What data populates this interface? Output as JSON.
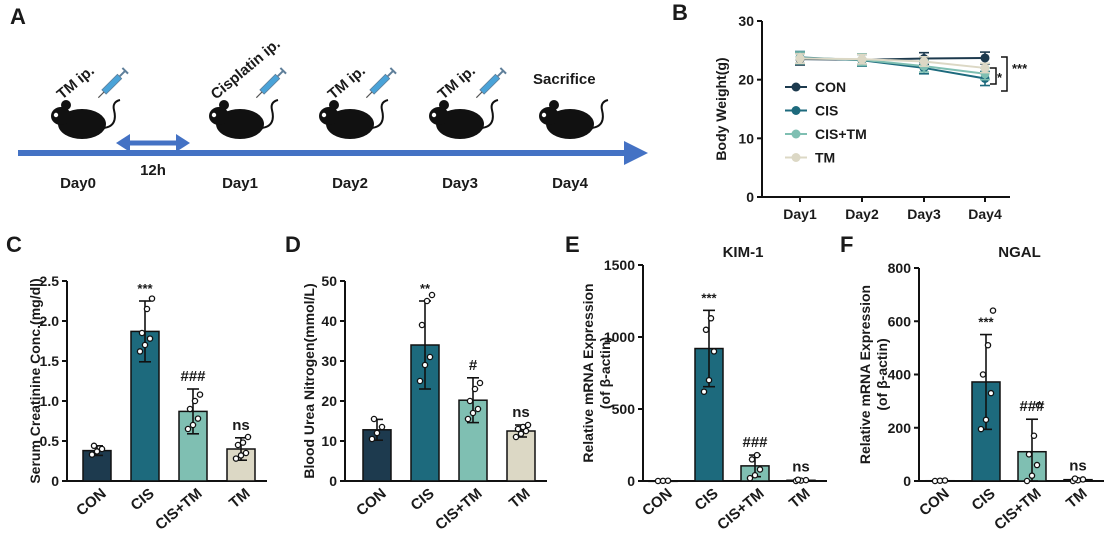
{
  "panel_labels": [
    "A",
    "B",
    "C",
    "D",
    "E",
    "F"
  ],
  "colors": {
    "CON": "#1d3a4e",
    "CIS": "#1d6a7d",
    "CIS+TM": "#7fbfb2",
    "TM": "#dcd8c5",
    "timeline": "#4472c4",
    "syringe": "#4aa3d8"
  },
  "timeline": {
    "steps": [
      "TM ip.",
      "Cisplatin ip.",
      "TM ip.",
      "TM ip.",
      "Sacrifice"
    ],
    "days": [
      "Day0",
      "Day1",
      "Day2",
      "Day3",
      "Day4"
    ],
    "interval": "12h"
  },
  "chart_data": [
    {
      "panel": "B",
      "type": "line",
      "title": "",
      "xlabel": "",
      "ylabel": "Body Weight(g)",
      "x": [
        "Day1",
        "Day2",
        "Day3",
        "Day4"
      ],
      "ylim": [
        0,
        30
      ],
      "yticks": [
        0,
        10,
        20,
        30
      ],
      "series": [
        {
          "name": "CON",
          "values": [
            23.5,
            23.4,
            23.6,
            23.7
          ],
          "err": [
            1.0,
            1.0,
            1.0,
            1.0
          ]
        },
        {
          "name": "CIS",
          "values": [
            23.8,
            23.3,
            22.0,
            20.2
          ],
          "err": [
            1.0,
            1.0,
            1.0,
            1.2
          ]
        },
        {
          "name": "CIS+TM",
          "values": [
            23.7,
            23.4,
            22.3,
            21.0
          ],
          "err": [
            1.0,
            1.0,
            1.0,
            1.0
          ]
        },
        {
          "name": "TM",
          "values": [
            23.6,
            23.5,
            23.1,
            22.0
          ],
          "err": [
            0.8,
            0.8,
            0.8,
            0.8
          ]
        }
      ],
      "annotations": [
        "***",
        "*"
      ]
    },
    {
      "panel": "C",
      "type": "bar",
      "title": "",
      "ylabel": "Serum Creatinine Conc.(mg/dl)",
      "categories": [
        "CON",
        "CIS",
        "CIS+TM",
        "TM"
      ],
      "values": [
        0.38,
        1.87,
        0.87,
        0.4
      ],
      "err": [
        0.06,
        0.38,
        0.28,
        0.14
      ],
      "points": [
        [
          0.33,
          0.37,
          0.4,
          0.44
        ],
        [
          1.62,
          1.7,
          1.78,
          1.85,
          2.15,
          2.28
        ],
        [
          0.65,
          0.7,
          0.78,
          0.9,
          1.0,
          1.08
        ],
        [
          0.28,
          0.32,
          0.35,
          0.45,
          0.48,
          0.55
        ]
      ],
      "sig": [
        "",
        "***",
        "###",
        "ns"
      ],
      "ylim": [
        0,
        2.5
      ],
      "yticks": [
        0,
        0.5,
        1.0,
        1.5,
        2.0,
        2.5
      ],
      "ytick_labels": [
        "0",
        "0.5",
        "1.0",
        "1.5",
        "2.0",
        "2.5"
      ]
    },
    {
      "panel": "D",
      "type": "bar",
      "title": "",
      "ylabel": "Blood Urea Nitrogen(mmol/L)",
      "categories": [
        "CON",
        "CIS",
        "CIS+TM",
        "TM"
      ],
      "values": [
        12.8,
        34.0,
        20.2,
        12.5
      ],
      "err": [
        2.6,
        11.0,
        5.6,
        1.5
      ],
      "points": [
        [
          10.5,
          12.0,
          13.5,
          15.5
        ],
        [
          25.0,
          29.0,
          31.0,
          39.0,
          45.0,
          46.5
        ],
        [
          15.5,
          17.0,
          18.0,
          20.0,
          23.0,
          24.5
        ],
        [
          11.0,
          11.8,
          12.5,
          13.0,
          13.5,
          14.0
        ]
      ],
      "sig": [
        "",
        "**",
        "#",
        "ns"
      ],
      "ylim": [
        0,
        50
      ],
      "yticks": [
        0,
        10,
        20,
        30,
        40,
        50
      ],
      "ytick_labels": [
        "0",
        "10",
        "20",
        "30",
        "40",
        "50"
      ]
    },
    {
      "panel": "E",
      "type": "bar",
      "title": "KIM-1",
      "ylabel": "Relative mRNA Expression (of β-actin)",
      "categories": [
        "CON",
        "CIS",
        "CIS+TM",
        "TM"
      ],
      "values": [
        1,
        920,
        105,
        5
      ],
      "err": [
        1,
        265,
        75,
        5
      ],
      "points": [
        [
          0,
          1,
          2
        ],
        [
          620,
          700,
          900,
          1050,
          1130
        ],
        [
          20,
          40,
          80,
          150,
          180
        ],
        [
          0,
          3,
          6,
          9
        ]
      ],
      "sig": [
        "",
        "***",
        "###",
        "ns"
      ],
      "ylim": [
        0,
        1500
      ],
      "yticks": [
        0,
        500,
        1000,
        1500
      ],
      "ytick_labels": [
        "0",
        "500",
        "1000",
        "1500"
      ]
    },
    {
      "panel": "F",
      "type": "bar",
      "title": "NGAL",
      "ylabel": "Relative mRNA Expression (of β-actin)",
      "categories": [
        "CON",
        "CIS",
        "CIS+TM",
        "TM"
      ],
      "values": [
        1,
        372,
        110,
        5
      ],
      "err": [
        1,
        178,
        122,
        5
      ],
      "points": [
        [
          0,
          1,
          2
        ],
        [
          195,
          230,
          330,
          400,
          510,
          640
        ],
        [
          0,
          20,
          60,
          100,
          170,
          285
        ],
        [
          0,
          3,
          6,
          9
        ]
      ],
      "sig": [
        "",
        "***",
        "###",
        "ns"
      ],
      "ylim": [
        0,
        800
      ],
      "yticks": [
        0,
        200,
        400,
        600,
        800
      ],
      "ytick_labels": [
        "0",
        "200",
        "400",
        "600",
        "800"
      ]
    }
  ]
}
